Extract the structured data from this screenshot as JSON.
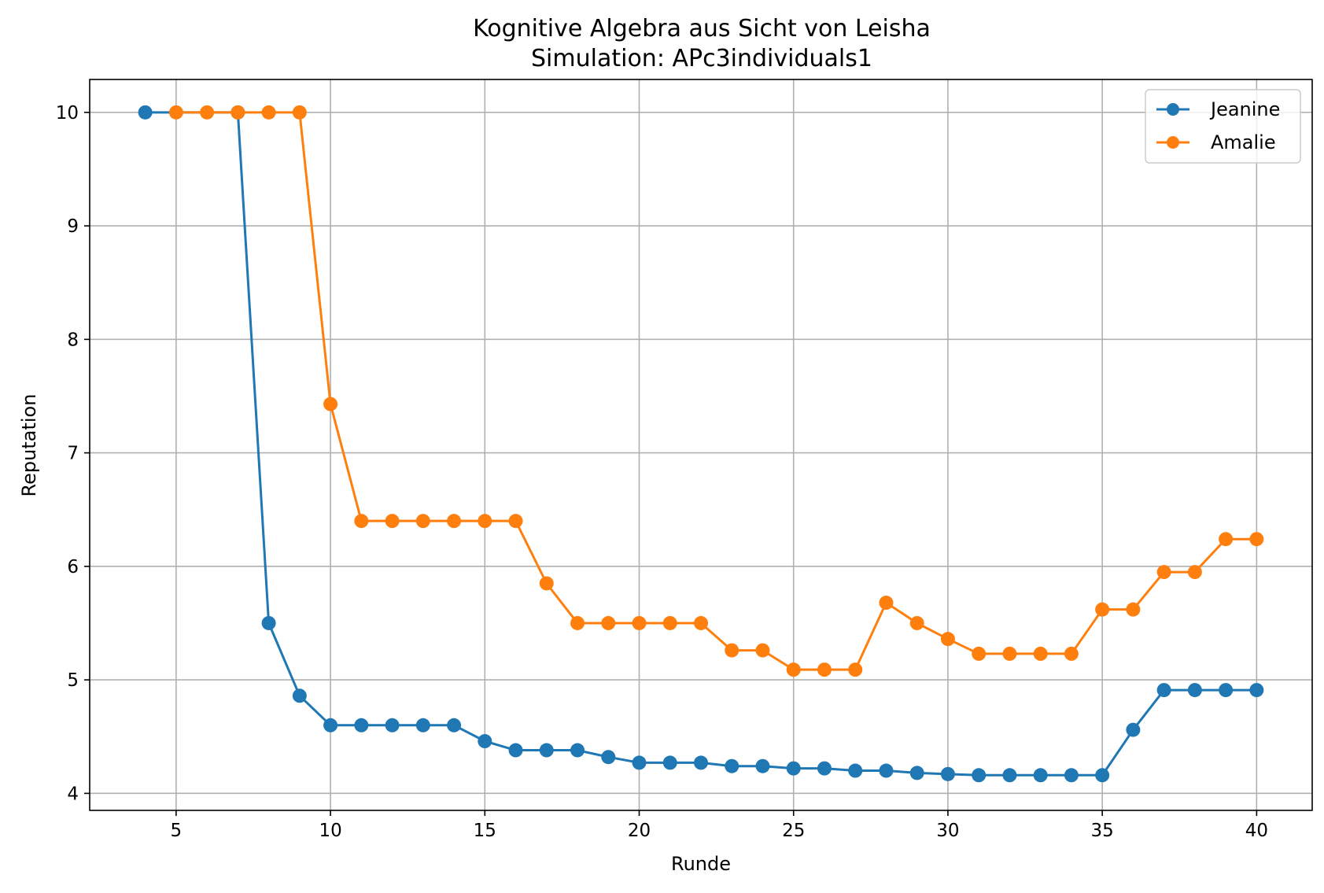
{
  "chart_data": {
    "type": "line",
    "title": "Kognitive Algebra aus Sicht von Leisha",
    "subtitle": "Simulation: APc3individuals1",
    "xlabel": "Runde",
    "ylabel": "Reputation",
    "xlim": [
      2.2,
      41.8
    ],
    "ylim": [
      3.85,
      10.29
    ],
    "xticks": [
      5,
      10,
      15,
      20,
      25,
      30,
      35,
      40
    ],
    "yticks": [
      4,
      5,
      6,
      7,
      8,
      9,
      10
    ],
    "grid": true,
    "legend_position": "top-right",
    "series": [
      {
        "name": "Jeanine",
        "color": "#1f77b4",
        "marker": "circle",
        "x": [
          4,
          7,
          8,
          9,
          10,
          11,
          12,
          13,
          14,
          15,
          16,
          17,
          18,
          19,
          20,
          21,
          22,
          23,
          24,
          25,
          26,
          27,
          28,
          29,
          30,
          31,
          32,
          33,
          34,
          35,
          36,
          37,
          38,
          39,
          40
        ],
        "y": [
          10.0,
          10.0,
          5.5,
          4.86,
          4.6,
          4.6,
          4.6,
          4.6,
          4.6,
          4.46,
          4.38,
          4.38,
          4.38,
          4.32,
          4.27,
          4.27,
          4.27,
          4.24,
          4.24,
          4.22,
          4.22,
          4.2,
          4.2,
          4.18,
          4.17,
          4.16,
          4.16,
          4.16,
          4.16,
          4.16,
          4.56,
          4.91,
          4.91,
          4.91,
          4.91
        ]
      },
      {
        "name": "Amalie",
        "color": "#ff7f0e",
        "marker": "circle",
        "x": [
          5,
          6,
          7,
          8,
          9,
          10,
          11,
          12,
          13,
          14,
          15,
          16,
          17,
          18,
          19,
          20,
          21,
          22,
          23,
          24,
          25,
          26,
          27,
          28,
          29,
          30,
          31,
          32,
          33,
          34,
          35,
          36,
          37,
          38,
          39,
          40
        ],
        "y": [
          10.0,
          10.0,
          10.0,
          10.0,
          10.0,
          7.43,
          6.4,
          6.4,
          6.4,
          6.4,
          6.4,
          6.4,
          5.85,
          5.5,
          5.5,
          5.5,
          5.5,
          5.5,
          5.26,
          5.26,
          5.09,
          5.09,
          5.09,
          5.68,
          5.5,
          5.36,
          5.23,
          5.23,
          5.23,
          5.23,
          5.62,
          5.62,
          5.95,
          5.95,
          6.24,
          6.24
        ]
      }
    ]
  }
}
